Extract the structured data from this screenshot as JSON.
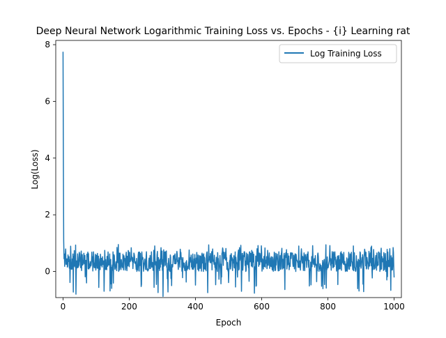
{
  "chart_data": {
    "type": "line",
    "title": "Deep Neural Network Logarithmic Training Loss vs. Epochs - {i} Learning rat",
    "xlabel": "Epoch",
    "ylabel": "Log(Loss)",
    "xlim": [
      -22,
      1022
    ],
    "ylim": [
      -0.92,
      8.15
    ],
    "xticks": [
      0,
      200,
      400,
      600,
      800,
      1000
    ],
    "yticks": [
      0,
      2,
      4,
      6,
      8
    ],
    "grid": false,
    "legend_position": "top-right",
    "series": [
      {
        "name": "Log Training Loss",
        "color": "#1f77b4",
        "x_start": 0,
        "x_step": 1,
        "head": [
          7.75,
          4.0,
          1.1,
          0.45,
          0.62,
          0.18,
          0.55
        ],
        "noise": {
          "min": -0.88,
          "max": 0.95,
          "typical_low": 0.0,
          "typical_high": 0.7
        },
        "length": 1001
      }
    ]
  }
}
